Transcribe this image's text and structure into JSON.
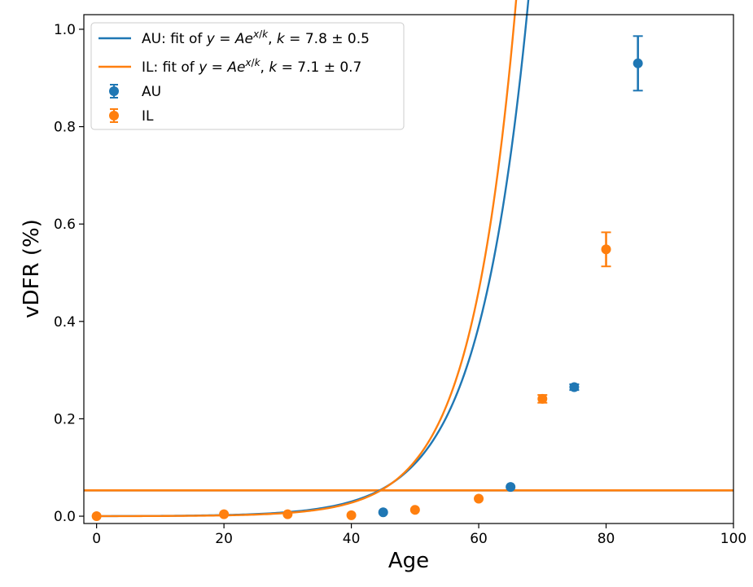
{
  "chart_data": {
    "type": "scatter",
    "title": "",
    "xlabel": "Age",
    "ylabel": "vDFR (%)",
    "xlim": [
      -2,
      100
    ],
    "ylim": [
      -0.015,
      1.03
    ],
    "xticks": [
      0,
      20,
      40,
      60,
      80,
      100
    ],
    "yticks": [
      0.0,
      0.2,
      0.4,
      0.6,
      0.8,
      1.0
    ],
    "xtick_labels": [
      "0",
      "20",
      "40",
      "60",
      "80",
      "100"
    ],
    "ytick_labels": [
      "0.0",
      "0.2",
      "0.4",
      "0.6",
      "0.8",
      "1.0"
    ],
    "legend_position": "top-left",
    "hlines": [
      {
        "y": 0.053,
        "color": "#1f77b4"
      },
      {
        "y": 0.053,
        "color": "#ff7f0e"
      }
    ],
    "series": [
      {
        "name": "AU",
        "color": "#1f77b4",
        "points": [
          {
            "x": 45,
            "y": 0.008,
            "err": 0.002
          },
          {
            "x": 65,
            "y": 0.06,
            "err": 0.003
          },
          {
            "x": 75,
            "y": 0.265,
            "err": 0.006
          },
          {
            "x": 85,
            "y": 0.93,
            "err": 0.056
          }
        ],
        "fit": {
          "label_prefix": "AU: fit of",
          "k_text": "7.8 ± 0.5",
          "A": 0.000178,
          "k": 7.8,
          "x_range": [
            0,
            85
          ]
        }
      },
      {
        "name": "IL",
        "color": "#ff7f0e",
        "points": [
          {
            "x": 0,
            "y": 0.0,
            "err": 0.0
          },
          {
            "x": 20,
            "y": 0.004,
            "err": 0.001
          },
          {
            "x": 30,
            "y": 0.004,
            "err": 0.001
          },
          {
            "x": 40,
            "y": 0.002,
            "err": 0.001
          },
          {
            "x": 50,
            "y": 0.013,
            "err": 0.002
          },
          {
            "x": 60,
            "y": 0.036,
            "err": 0.003
          },
          {
            "x": 70,
            "y": 0.241,
            "err": 0.008
          },
          {
            "x": 80,
            "y": 0.548,
            "err": 0.035
          }
        ],
        "fit": {
          "label_prefix": "IL: fit of",
          "k_text": "7.1 ± 0.7",
          "A": 9.9e-05,
          "k": 7.1,
          "x_range": [
            0,
            80
          ]
        }
      }
    ]
  }
}
